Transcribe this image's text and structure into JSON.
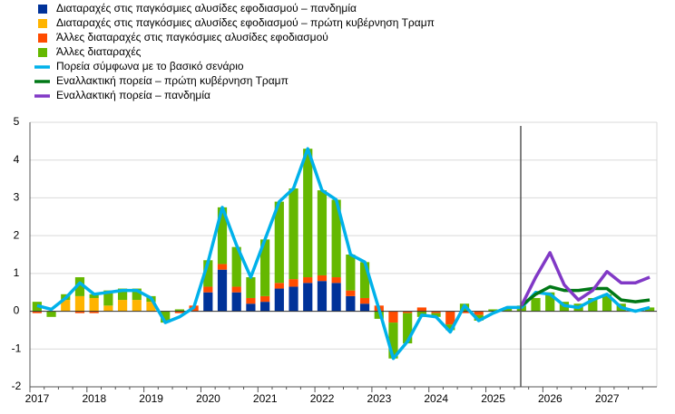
{
  "chart_data": {
    "type": "bar",
    "categories": [
      "2017",
      null,
      null,
      null,
      "2018",
      null,
      null,
      null,
      "2019",
      null,
      null,
      null,
      "2020",
      null,
      null,
      null,
      "2021",
      null,
      null,
      null,
      "2022",
      null,
      null,
      null,
      "2023",
      null,
      null,
      null,
      "2024",
      null,
      null,
      null,
      "2025",
      null,
      null,
      null,
      "2026",
      null,
      null,
      null,
      "2027",
      null,
      null,
      null
    ],
    "series": [
      {
        "name": "Διαταραχές στις παγκόσμιες αλυσίδες εφοδιασμού – πανδημία",
        "type": "bar",
        "color": "#003299",
        "values": [
          0,
          0,
          0,
          0,
          0,
          0,
          0,
          0,
          0,
          0,
          0,
          0,
          0.5,
          1.1,
          0.5,
          0.2,
          0.25,
          0.6,
          0.65,
          0.75,
          0.8,
          0.75,
          0.4,
          0.2,
          0,
          0,
          0,
          0,
          0,
          0,
          0,
          0,
          0,
          0,
          0,
          0,
          0,
          0,
          0,
          0,
          0,
          0,
          0,
          0
        ]
      },
      {
        "name": "Διαταραχές στις παγκόσμιες αλυσίδες εφοδιασμού – πρώτη κυβέρνηση Τραμπ",
        "type": "bar",
        "color": "#ffb400",
        "values": [
          0,
          0,
          0.3,
          0.4,
          0.35,
          0.15,
          0.3,
          0.3,
          0.25,
          0,
          0,
          0,
          0,
          0,
          0,
          0,
          0,
          0,
          0,
          0,
          0,
          0,
          0,
          0,
          0,
          0,
          0,
          0,
          0,
          0,
          0,
          0,
          0,
          0,
          0,
          0,
          0,
          0,
          0,
          0,
          0,
          0,
          0,
          0
        ]
      },
      {
        "name": "Άλλες διαταραχές στις παγκόσμιες αλυσίδες εφοδιασμού",
        "type": "bar",
        "color": "#ff4b00",
        "values": [
          -0.05,
          0,
          0,
          -0.05,
          -0.05,
          0,
          0,
          0,
          0,
          0,
          -0.05,
          0.15,
          0.15,
          0.15,
          0.15,
          0.15,
          0.15,
          0.15,
          0.2,
          0.15,
          0.15,
          0.15,
          0.15,
          0.15,
          0.15,
          -0.3,
          -0.05,
          0.1,
          -0.05,
          -0.35,
          -0.05,
          -0.1,
          0,
          0,
          0,
          0,
          0,
          0,
          0,
          0,
          0,
          0,
          0,
          0
        ]
      },
      {
        "name": "Άλλες διαταραχές",
        "type": "bar",
        "color": "#65b800",
        "values": [
          0.25,
          -0.15,
          0.15,
          0.5,
          0.1,
          0.4,
          0.3,
          0.3,
          0.15,
          -0.3,
          0.05,
          0,
          0.7,
          1.5,
          1.05,
          0.55,
          1.5,
          2.15,
          2.4,
          3.4,
          2.25,
          2.05,
          0.95,
          0.95,
          -0.2,
          -0.95,
          -0.8,
          -0.15,
          -0.1,
          -0.15,
          0.2,
          -0.15,
          0.05,
          0.1,
          0.15,
          0.35,
          0.5,
          0.25,
          0.2,
          0.35,
          0.45,
          0.2,
          0.05,
          0.1
        ]
      },
      {
        "name": "Πορεία σύμφωνα με το βασικό σενάριο",
        "type": "line",
        "color": "#00b1ea",
        "values": [
          0.15,
          0.05,
          0.35,
          0.75,
          0.45,
          0.5,
          0.55,
          0.55,
          0.35,
          -0.3,
          -0.15,
          0.1,
          1.3,
          2.75,
          1.75,
          0.9,
          1.9,
          2.9,
          3.25,
          4.3,
          3.2,
          2.95,
          1.5,
          1.3,
          0.05,
          -1.25,
          -0.8,
          -0.1,
          -0.15,
          -0.55,
          0.15,
          -0.25,
          -0.05,
          0.1,
          0.1,
          0.5,
          0.45,
          0.15,
          0.1,
          0.3,
          0.45,
          0.1,
          0,
          0.1
        ]
      },
      {
        "name": "Εναλλακτική πορεία – πρώτη κυβέρνηση Τραμπ",
        "type": "line",
        "color": "#007816",
        "values": [
          null,
          null,
          null,
          null,
          null,
          null,
          null,
          null,
          null,
          null,
          null,
          null,
          null,
          null,
          null,
          null,
          null,
          null,
          null,
          null,
          null,
          null,
          null,
          null,
          null,
          null,
          null,
          null,
          null,
          null,
          null,
          null,
          null,
          null,
          0.15,
          0.45,
          0.65,
          0.55,
          0.55,
          0.6,
          0.6,
          0.3,
          0.25,
          0.3
        ]
      },
      {
        "name": "Εναλλακτική πορεία – πανδημία",
        "type": "line",
        "color": "#8139c6",
        "values": [
          null,
          null,
          null,
          null,
          null,
          null,
          null,
          null,
          null,
          null,
          null,
          null,
          null,
          null,
          null,
          null,
          null,
          null,
          null,
          null,
          null,
          null,
          null,
          null,
          null,
          null,
          null,
          null,
          null,
          null,
          null,
          null,
          null,
          null,
          0.15,
          0.9,
          1.55,
          0.7,
          0.3,
          0.55,
          1.05,
          0.75,
          0.75,
          0.9
        ]
      }
    ],
    "ylim": [
      -2,
      5
    ],
    "yticks": [
      -2,
      -1,
      0,
      1,
      2,
      3,
      4,
      5
    ],
    "grid": true
  }
}
